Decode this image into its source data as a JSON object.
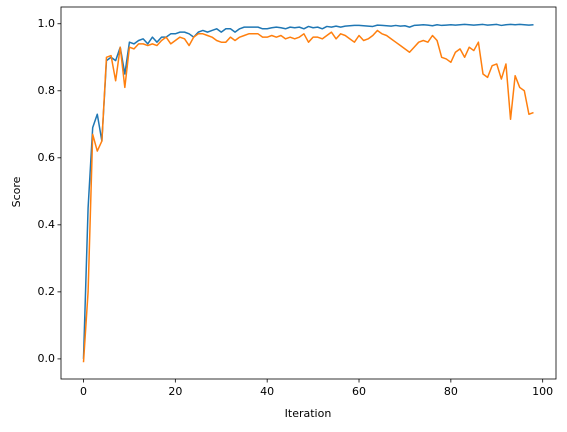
{
  "chart_data": {
    "type": "line",
    "xlabel": "Iteration",
    "ylabel": "Score",
    "x": [
      0,
      1,
      2,
      3,
      4,
      5,
      6,
      7,
      8,
      9,
      10,
      11,
      12,
      13,
      14,
      15,
      16,
      17,
      18,
      19,
      20,
      21,
      22,
      23,
      24,
      25,
      26,
      27,
      28,
      29,
      30,
      31,
      32,
      33,
      34,
      35,
      36,
      37,
      38,
      39,
      40,
      41,
      42,
      43,
      44,
      45,
      46,
      47,
      48,
      49,
      50,
      51,
      52,
      53,
      54,
      55,
      56,
      57,
      58,
      59,
      60,
      61,
      62,
      63,
      64,
      65,
      66,
      67,
      68,
      69,
      70,
      71,
      72,
      73,
      74,
      75,
      76,
      77,
      78,
      79,
      80,
      81,
      82,
      83,
      84,
      85,
      86,
      87,
      88,
      89,
      90,
      91,
      92,
      93,
      94,
      95,
      96,
      97,
      98
    ],
    "series": [
      {
        "color": "#1f77b4",
        "values": [
          0.0,
          0.45,
          0.69,
          0.73,
          0.65,
          0.89,
          0.9,
          0.89,
          0.93,
          0.85,
          0.945,
          0.94,
          0.95,
          0.955,
          0.94,
          0.96,
          0.945,
          0.96,
          0.96,
          0.97,
          0.97,
          0.975,
          0.975,
          0.97,
          0.96,
          0.975,
          0.98,
          0.975,
          0.98,
          0.985,
          0.975,
          0.985,
          0.985,
          0.975,
          0.985,
          0.99,
          0.99,
          0.99,
          0.99,
          0.985,
          0.985,
          0.988,
          0.99,
          0.988,
          0.985,
          0.99,
          0.988,
          0.99,
          0.985,
          0.992,
          0.988,
          0.99,
          0.985,
          0.992,
          0.99,
          0.993,
          0.99,
          0.993,
          0.994,
          0.995,
          0.995,
          0.994,
          0.993,
          0.992,
          0.996,
          0.995,
          0.994,
          0.993,
          0.995,
          0.993,
          0.994,
          0.99,
          0.995,
          0.996,
          0.997,
          0.996,
          0.994,
          0.997,
          0.995,
          0.996,
          0.997,
          0.996,
          0.997,
          0.998,
          0.997,
          0.996,
          0.997,
          0.998,
          0.996,
          0.997,
          0.998,
          0.995,
          0.997,
          0.998,
          0.997,
          0.998,
          0.997,
          0.996,
          0.997
        ]
      },
      {
        "color": "#ff7f0e",
        "values": [
          -0.01,
          0.2,
          0.67,
          0.62,
          0.65,
          0.9,
          0.905,
          0.83,
          0.93,
          0.81,
          0.93,
          0.925,
          0.94,
          0.94,
          0.935,
          0.94,
          0.935,
          0.95,
          0.96,
          0.94,
          0.95,
          0.96,
          0.955,
          0.935,
          0.96,
          0.97,
          0.97,
          0.965,
          0.96,
          0.95,
          0.945,
          0.945,
          0.96,
          0.95,
          0.96,
          0.965,
          0.97,
          0.97,
          0.97,
          0.96,
          0.96,
          0.965,
          0.96,
          0.965,
          0.955,
          0.96,
          0.955,
          0.96,
          0.97,
          0.945,
          0.96,
          0.96,
          0.955,
          0.965,
          0.975,
          0.955,
          0.97,
          0.965,
          0.955,
          0.945,
          0.965,
          0.95,
          0.955,
          0.965,
          0.98,
          0.97,
          0.965,
          0.955,
          0.945,
          0.935,
          0.925,
          0.915,
          0.93,
          0.945,
          0.95,
          0.945,
          0.965,
          0.95,
          0.9,
          0.895,
          0.885,
          0.915,
          0.925,
          0.9,
          0.93,
          0.92,
          0.945,
          0.85,
          0.84,
          0.875,
          0.88,
          0.835,
          0.88,
          0.715,
          0.845,
          0.81,
          0.8,
          0.73,
          0.735
        ]
      }
    ],
    "xlim": [
      -4.9,
      102.9
    ],
    "ylim": [
      -0.06,
      1.05
    ],
    "xticks": [
      0,
      20,
      40,
      60,
      80,
      100
    ],
    "yticks": [
      {
        "value": 0,
        "label": "0.0"
      },
      0.2,
      0.4,
      0.6,
      0.8,
      {
        "value": 1,
        "label": "1.0"
      }
    ]
  }
}
